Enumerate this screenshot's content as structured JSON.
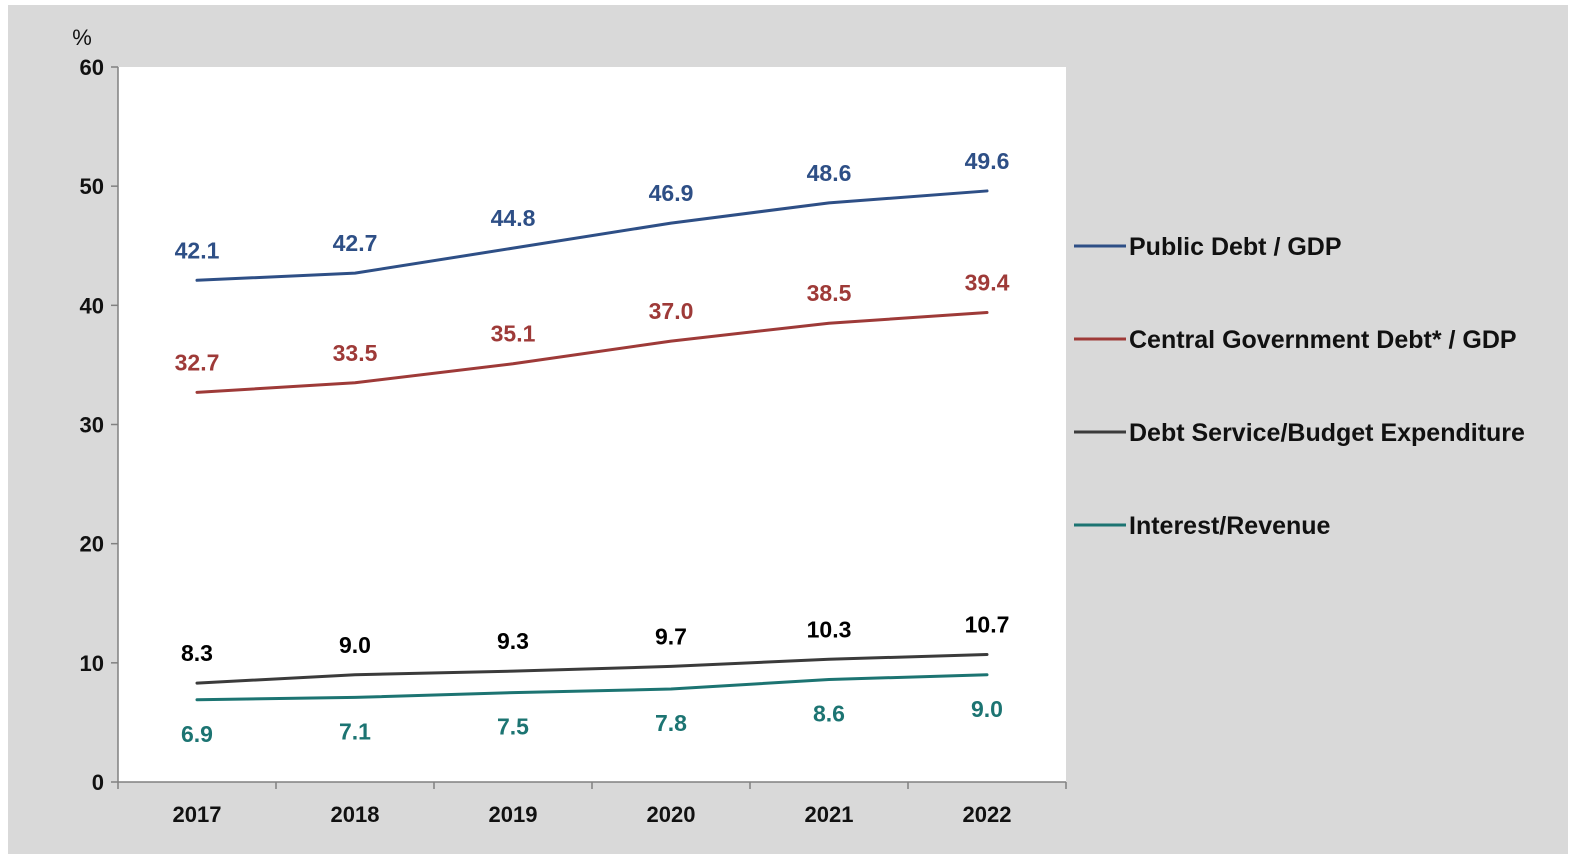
{
  "chart_data": {
    "type": "line",
    "ylabel": "%",
    "ylim": [
      0,
      60
    ],
    "yticks": [
      0,
      10,
      20,
      30,
      40,
      50,
      60
    ],
    "categories": [
      "2017",
      "2018",
      "2019",
      "2020",
      "2021",
      "2022"
    ],
    "grid": false,
    "legend_position": "right",
    "series": [
      {
        "name": "Public Debt / GDP",
        "color": "#2e4f86",
        "values": [
          42.1,
          42.7,
          44.8,
          46.9,
          48.6,
          49.6
        ],
        "labels": [
          "42.1",
          "42.7",
          "44.8",
          "46.9",
          "48.6",
          "49.6"
        ],
        "label_position": "above"
      },
      {
        "name": "Central Government Debt* / GDP",
        "color": "#9e3a38",
        "values": [
          32.7,
          33.5,
          35.1,
          37.0,
          38.5,
          39.4
        ],
        "labels": [
          "32.7",
          "33.5",
          "35.1",
          "37.0",
          "38.5",
          "39.4"
        ],
        "label_position": "above"
      },
      {
        "name": "Debt Service/Budget Expenditure",
        "color": "#3b3b3b",
        "label_color": "#000000",
        "values": [
          8.3,
          9.0,
          9.3,
          9.7,
          10.3,
          10.7
        ],
        "labels": [
          "8.3",
          "9.0",
          "9.3",
          "9.7",
          "10.3",
          "10.7"
        ],
        "label_position": "above"
      },
      {
        "name": "Interest/Revenue",
        "color": "#1c7472",
        "values": [
          6.9,
          7.1,
          7.5,
          7.8,
          8.6,
          9.0
        ],
        "labels": [
          "6.9",
          "7.1",
          "7.5",
          "7.8",
          "8.6",
          "9.0"
        ],
        "label_position": "below"
      }
    ]
  },
  "colors": {
    "outer_background": "#d9d9d9",
    "plot_background": "#ffffff",
    "axis": "#808080"
  }
}
